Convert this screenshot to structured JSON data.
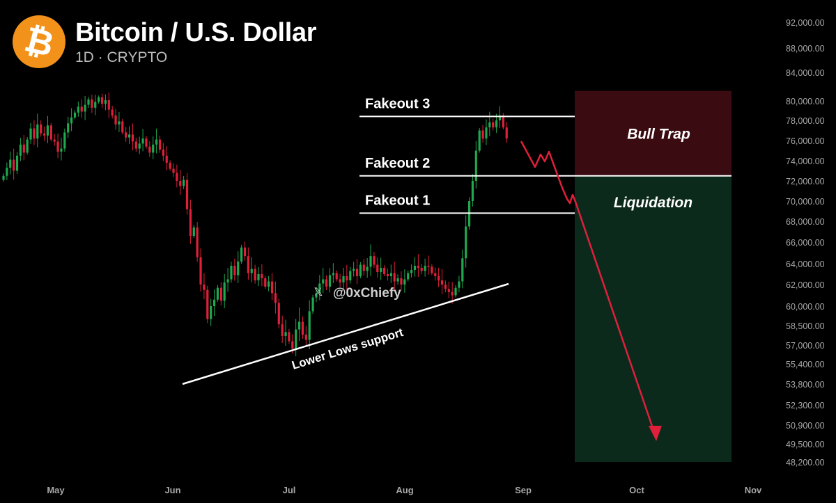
{
  "header": {
    "logo_symbol": "₿",
    "logo_color": "#f2921b",
    "title": "Bitcoin / U.S. Dollar",
    "subtitle": "1D · CRYPTO"
  },
  "chart_data": {
    "type": "candlestick",
    "y_axis_labels": [
      "92,000.00",
      "88,000.00",
      "84,000.00",
      "80,000.00",
      "78,000.00",
      "76,000.00",
      "74,000.00",
      "72,000.00",
      "70,000.00",
      "68,000.00",
      "66,000.00",
      "64,000.00",
      "62,000.00",
      "60,000.00",
      "58,500.00",
      "57,000.00",
      "55,400.00",
      "53,800.00",
      "52,300.00",
      "50,900.00",
      "49,500.00",
      "48,200.00"
    ],
    "x_axis_labels": [
      "May",
      "Jun",
      "Jul",
      "Aug",
      "Sep",
      "Oct",
      "Nov"
    ],
    "colors": {
      "up": "#1fa84f",
      "down": "#e0203a",
      "bull_trap_zone": "#3a0b10",
      "liquidation_zone": "#0c2a1c",
      "projection": "#e0203a"
    },
    "horizontal_levels": [
      {
        "label": "Fakeout 3",
        "price": 78400
      },
      {
        "label": "Fakeout 2",
        "price": 72500
      },
      {
        "label": "Fakeout 1",
        "price": 68800
      }
    ],
    "zones": [
      {
        "label": "Bull Trap",
        "top_price": 81400,
        "bottom_price": 72500
      },
      {
        "label": "Liquidation",
        "top_price": 72500,
        "bottom_price": 48200
      }
    ],
    "trendline": {
      "label": "Lower Lows support"
    },
    "watermark": "@0xChiefy",
    "watermark_icon": "x-logo-icon",
    "closes": [
      72500,
      73300,
      74100,
      73000,
      74500,
      75600,
      74800,
      76100,
      77200,
      76200,
      77600,
      76700,
      76500,
      77500,
      76100,
      75900,
      74900,
      75200,
      76800,
      77700,
      78300,
      78800,
      79400,
      78900,
      79600,
      80200,
      79300,
      79900,
      80500,
      79700,
      80100,
      79100,
      78500,
      77600,
      77900,
      76800,
      76300,
      76600,
      75900,
      75200,
      75700,
      76200,
      75400,
      74800,
      75600,
      76100,
      75100,
      74500,
      73800,
      73200,
      72800,
      72000,
      71500,
      72100,
      69200,
      66600,
      67400,
      64600,
      62000,
      61500,
      59000,
      60000,
      60600,
      61700,
      60500,
      62200,
      62500,
      63800,
      62900,
      64200,
      65500,
      64700,
      63100,
      63500,
      62400,
      63000,
      62600,
      61800,
      62300,
      61200,
      60300,
      58600,
      57700,
      58000,
      57300,
      56700,
      58200,
      58800,
      57800,
      57400,
      59600,
      60800,
      61200,
      62100,
      62500,
      61800,
      62900,
      63100,
      62500,
      62200,
      62800,
      62400,
      63300,
      63500,
      62800,
      63900,
      63300,
      63700,
      64700,
      63900,
      63200,
      63600,
      63000,
      62800,
      63100,
      62300,
      62600,
      62000,
      62500,
      63100,
      63400,
      63800,
      63600,
      63300,
      63800,
      63700,
      63100,
      62800,
      62400,
      62000,
      61600,
      61300,
      61000,
      61700,
      62300,
      64500,
      67500,
      70000,
      72000,
      75000,
      77000,
      76200,
      77300,
      77800,
      77300,
      78000,
      78500,
      77300,
      76200
    ]
  }
}
